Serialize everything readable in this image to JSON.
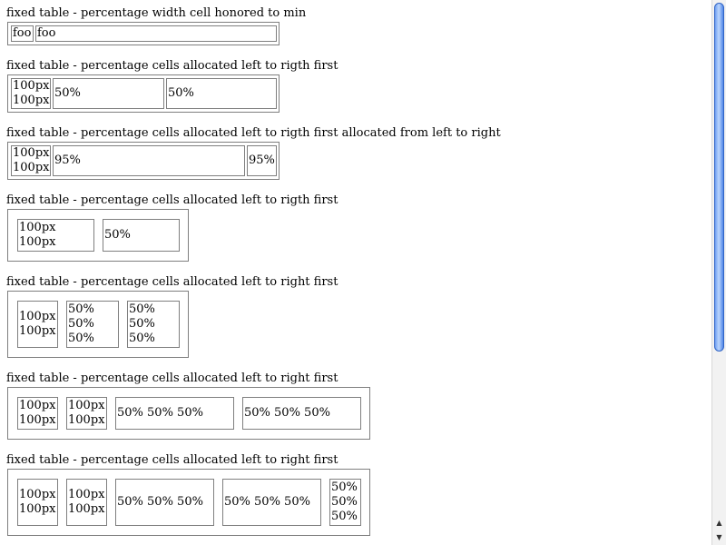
{
  "tests": [
    {
      "caption": "fixed table - percentage width cell honored to min",
      "cells": [
        {
          "lines": [
            "foo"
          ]
        },
        {
          "lines": [
            "foo"
          ]
        }
      ]
    },
    {
      "caption": "fixed table - percentage cells allocated left to rigth first",
      "cells": [
        {
          "lines": [
            "100px",
            "100px"
          ]
        },
        {
          "lines": [
            "50%"
          ]
        },
        {
          "lines": [
            "50%"
          ]
        }
      ]
    },
    {
      "caption": "fixed table - percentage cells allocated left to rigth first allocated from left to right",
      "cells": [
        {
          "lines": [
            "100px",
            "100px"
          ]
        },
        {
          "lines": [
            "95%"
          ]
        },
        {
          "lines": [
            "95%"
          ]
        }
      ]
    },
    {
      "caption": "fixed table - percentage cells allocated left to rigth first",
      "cells": [
        {
          "lines": [
            "100px",
            "100px"
          ]
        },
        {
          "lines": [
            "50%"
          ]
        }
      ]
    },
    {
      "caption": "fixed table - percentage cells allocated left to right first",
      "cells": [
        {
          "lines": [
            "100px",
            "100px"
          ]
        },
        {
          "lines": [
            "50%",
            "50%",
            "50%"
          ]
        },
        {
          "lines": [
            "50%",
            "50%",
            "50%"
          ]
        }
      ]
    },
    {
      "caption": "fixed table - percentage cells allocated left to right first",
      "cells": [
        {
          "lines": [
            "100px",
            "100px"
          ]
        },
        {
          "lines": [
            "100px",
            "100px"
          ]
        },
        {
          "lines": [
            "50% 50% 50%"
          ]
        },
        {
          "lines": [
            "50% 50% 50%"
          ]
        }
      ]
    },
    {
      "caption": "fixed table - percentage cells allocated left to right first",
      "cells": [
        {
          "lines": [
            "100px",
            "100px"
          ]
        },
        {
          "lines": [
            "100px",
            "100px"
          ]
        },
        {
          "lines": [
            "50% 50% 50%"
          ]
        },
        {
          "lines": [
            "50% 50% 50%"
          ]
        },
        {
          "lines": [
            "50%",
            "50%",
            "50%"
          ]
        }
      ]
    }
  ],
  "scrollbar": {
    "up_arrow_icon": "arrow-up-icon",
    "down_arrow_icon": "arrow-down-icon"
  }
}
